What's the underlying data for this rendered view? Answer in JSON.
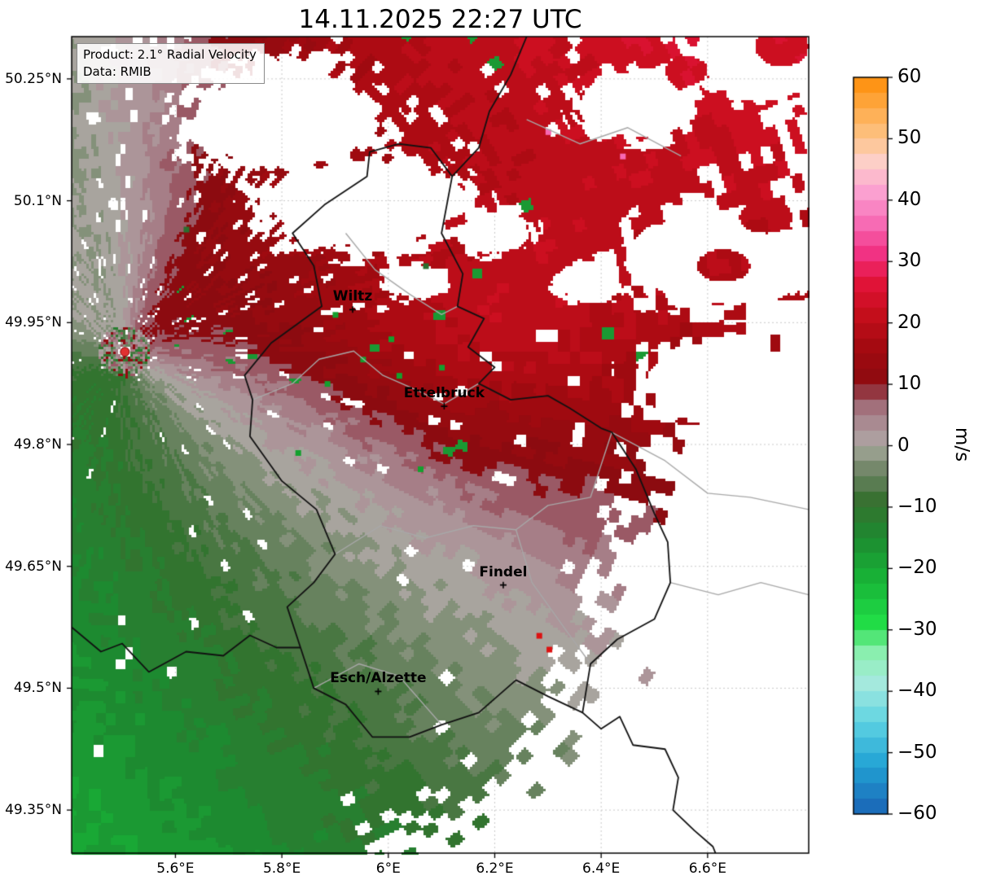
{
  "title": "14.11.2025 22:27 UTC",
  "info_box": {
    "product": "Product: 2.1° Radial Velocity",
    "source": "Data: RMIB"
  },
  "colorbar": {
    "unit_label": "m/s",
    "min": -60,
    "max": 60,
    "ticks": [
      {
        "value": 60,
        "label": "60"
      },
      {
        "value": 50,
        "label": "50"
      },
      {
        "value": 40,
        "label": "40"
      },
      {
        "value": 30,
        "label": "30"
      },
      {
        "value": 20,
        "label": "20"
      },
      {
        "value": 10,
        "label": "10"
      },
      {
        "value": 0,
        "label": "0"
      },
      {
        "value": -10,
        "label": "−10"
      },
      {
        "value": -20,
        "label": "−20"
      },
      {
        "value": -30,
        "label": "−30"
      },
      {
        "value": -40,
        "label": "−40"
      },
      {
        "value": -50,
        "label": "−50"
      },
      {
        "value": -60,
        "label": "−60"
      }
    ],
    "stops": [
      [
        -60,
        "#1a63b5"
      ],
      [
        -52,
        "#22a3d4"
      ],
      [
        -45,
        "#5ed3e2"
      ],
      [
        -39,
        "#a5e9df"
      ],
      [
        -34,
        "#8ff0b4"
      ],
      [
        -29,
        "#21dd47"
      ],
      [
        -22,
        "#17b437"
      ],
      [
        -15,
        "#1d8a30"
      ],
      [
        -9,
        "#36702f"
      ],
      [
        -6,
        "#5c7d54"
      ],
      [
        -3,
        "#7d8b73"
      ],
      [
        -1,
        "#99a18f"
      ],
      [
        0,
        "#a8a49e"
      ],
      [
        1,
        "#ada0a0"
      ],
      [
        3,
        "#ab9197"
      ],
      [
        6,
        "#a4747f"
      ],
      [
        8,
        "#97505c"
      ],
      [
        10,
        "#8c0b10"
      ],
      [
        16,
        "#a30a10"
      ],
      [
        22,
        "#c90e1d"
      ],
      [
        27,
        "#e4143c"
      ],
      [
        31,
        "#f12f80"
      ],
      [
        36,
        "#f768b3"
      ],
      [
        41,
        "#fb9dd0"
      ],
      [
        46,
        "#fdd0cb"
      ],
      [
        50,
        "#fdc489"
      ],
      [
        55,
        "#feaa47"
      ],
      [
        60,
        "#fe8c05"
      ]
    ]
  },
  "map": {
    "extent": {
      "lon_min": 5.405,
      "lon_max": 6.79,
      "lat_min": 49.297,
      "lat_max": 50.302
    },
    "grid_color": "#c9c9c9",
    "x_ticks": [
      {
        "lon": 5.6,
        "label": "5.6°E"
      },
      {
        "lon": 5.8,
        "label": "5.8°E"
      },
      {
        "lon": 6.0,
        "label": "6°E"
      },
      {
        "lon": 6.2,
        "label": "6.2°E"
      },
      {
        "lon": 6.4,
        "label": "6.4°E"
      },
      {
        "lon": 6.6,
        "label": "6.6°E"
      }
    ],
    "y_ticks": [
      {
        "lat": 50.25,
        "label": "50.25°N"
      },
      {
        "lat": 50.1,
        "label": "50.1°N"
      },
      {
        "lat": 49.95,
        "label": "49.95°N"
      },
      {
        "lat": 49.8,
        "label": "49.8°N"
      },
      {
        "lat": 49.65,
        "label": "49.65°N"
      },
      {
        "lat": 49.5,
        "label": "49.5°N"
      },
      {
        "lat": 49.35,
        "label": "49.35°N"
      }
    ],
    "cities": [
      {
        "name": "Wiltz",
        "lon": 5.933,
        "lat": 49.966
      },
      {
        "name": "Ettelbruck",
        "lon": 6.105,
        "lat": 49.847
      },
      {
        "name": "Findel",
        "lon": 6.216,
        "lat": 49.627
      },
      {
        "name": "Esch/Alzette",
        "lon": 5.981,
        "lat": 49.496
      }
    ],
    "radar_site": {
      "lon": 5.505,
      "lat": 49.914,
      "color": "#e03131"
    },
    "borders_black": [
      [
        [
          6.02,
          50.17
        ],
        [
          6.08,
          50.165
        ],
        [
          6.12,
          50.13
        ],
        [
          6.1,
          50.06
        ],
        [
          6.14,
          50.01
        ],
        [
          6.13,
          49.97
        ],
        [
          6.18,
          49.955
        ],
        [
          6.15,
          49.92
        ],
        [
          6.2,
          49.895
        ],
        [
          6.17,
          49.875
        ],
        [
          6.23,
          49.855
        ],
        [
          6.3,
          49.86
        ],
        [
          6.34,
          49.845
        ],
        [
          6.4,
          49.82
        ],
        [
          6.42,
          49.815
        ],
        [
          6.465,
          49.77
        ],
        [
          6.5,
          49.715
        ],
        [
          6.525,
          49.68
        ],
        [
          6.53,
          49.63
        ],
        [
          6.5,
          49.585
        ],
        [
          6.43,
          49.56
        ],
        [
          6.38,
          49.53
        ],
        [
          6.365,
          49.47
        ],
        [
          6.3,
          49.49
        ],
        [
          6.24,
          49.51
        ],
        [
          6.17,
          49.47
        ],
        [
          6.1,
          49.455
        ],
        [
          6.04,
          49.44
        ],
        [
          5.97,
          49.44
        ],
        [
          5.92,
          49.48
        ],
        [
          5.86,
          49.5
        ],
        [
          5.835,
          49.55
        ],
        [
          5.81,
          49.6
        ],
        [
          5.86,
          49.63
        ],
        [
          5.9,
          49.665
        ],
        [
          5.865,
          49.72
        ],
        [
          5.8,
          49.755
        ],
        [
          5.74,
          49.81
        ],
        [
          5.745,
          49.855
        ],
        [
          5.73,
          49.885
        ],
        [
          5.78,
          49.925
        ],
        [
          5.875,
          49.97
        ],
        [
          5.86,
          50.02
        ],
        [
          5.82,
          50.06
        ],
        [
          5.88,
          50.095
        ],
        [
          5.96,
          50.13
        ],
        [
          5.965,
          50.16
        ],
        [
          6.02,
          50.17
        ]
      ],
      [
        [
          6.12,
          50.13
        ],
        [
          6.17,
          50.165
        ],
        [
          6.19,
          50.21
        ],
        [
          6.23,
          50.255
        ],
        [
          6.26,
          50.302
        ],
        [
          6.28,
          50.33
        ]
      ],
      [
        [
          5.405,
          49.575
        ],
        [
          5.46,
          49.545
        ],
        [
          5.5,
          49.555
        ],
        [
          5.55,
          49.52
        ],
        [
          5.62,
          49.545
        ],
        [
          5.69,
          49.54
        ],
        [
          5.74,
          49.565
        ],
        [
          5.79,
          49.55
        ],
        [
          5.835,
          49.55
        ]
      ],
      [
        [
          6.365,
          49.47
        ],
        [
          6.4,
          49.45
        ],
        [
          6.435,
          49.465
        ],
        [
          6.46,
          49.43
        ],
        [
          6.52,
          49.425
        ],
        [
          6.545,
          49.39
        ],
        [
          6.535,
          49.35
        ],
        [
          6.575,
          49.325
        ],
        [
          6.61,
          49.305
        ],
        [
          6.625,
          49.28
        ]
      ]
    ],
    "borders_gray": [
      [
        [
          5.745,
          49.855
        ],
        [
          5.82,
          49.875
        ],
        [
          5.87,
          49.905
        ],
        [
          5.935,
          49.915
        ],
        [
          5.99,
          49.885
        ],
        [
          6.06,
          49.865
        ],
        [
          6.105,
          49.85
        ],
        [
          6.17,
          49.875
        ]
      ],
      [
        [
          5.92,
          50.06
        ],
        [
          5.975,
          50.015
        ],
        [
          6.04,
          49.985
        ],
        [
          6.1,
          49.96
        ],
        [
          6.13,
          49.97
        ]
      ],
      [
        [
          5.9,
          49.665
        ],
        [
          5.985,
          49.7
        ],
        [
          6.07,
          49.685
        ],
        [
          6.16,
          49.7
        ],
        [
          6.24,
          49.695
        ],
        [
          6.3,
          49.725
        ],
        [
          6.38,
          49.735
        ],
        [
          6.42,
          49.815
        ]
      ],
      [
        [
          6.24,
          49.695
        ],
        [
          6.27,
          49.63
        ],
        [
          6.33,
          49.575
        ],
        [
          6.38,
          49.53
        ]
      ],
      [
        [
          6.42,
          49.815
        ],
        [
          6.52,
          49.78
        ],
        [
          6.6,
          49.74
        ],
        [
          6.68,
          49.735
        ],
        [
          6.79,
          49.72
        ]
      ],
      [
        [
          6.53,
          49.63
        ],
        [
          6.62,
          49.615
        ],
        [
          6.7,
          49.63
        ],
        [
          6.79,
          49.615
        ]
      ],
      [
        [
          5.86,
          49.5
        ],
        [
          5.945,
          49.53
        ],
        [
          6.02,
          49.515
        ],
        [
          6.1,
          49.455
        ]
      ],
      [
        [
          6.26,
          50.2
        ],
        [
          6.36,
          50.17
        ],
        [
          6.45,
          50.19
        ],
        [
          6.55,
          50.155
        ]
      ]
    ]
  },
  "field": {
    "wind_to_deg": 35,
    "speed_base": 9,
    "speed_slope": 0.2,
    "speed_max": 27,
    "az_step": 1.5,
    "r_step": 1.5,
    "bump_neg": {
      "az": 352,
      "width": 35,
      "amp": 0.75
    },
    "bump_pos": {
      "az": 88,
      "az_width": 20,
      "r_center": 45,
      "r_width": 25,
      "amp": 0.45
    },
    "no_echo_blobs": [
      [
        5.95,
        50.095,
        0.22,
        0.065
      ],
      [
        5.8,
        50.2,
        0.2,
        0.075
      ],
      [
        6.62,
        50.03,
        0.2,
        0.07
      ],
      [
        6.62,
        49.88,
        0.18,
        0.05
      ],
      [
        6.46,
        50.22,
        0.12,
        0.05
      ],
      [
        6.7,
        50.28,
        0.15,
        0.06
      ],
      [
        6.05,
        50.0,
        0.06,
        0.025
      ],
      [
        6.38,
        50.0,
        0.07,
        0.025
      ],
      [
        6.2,
        50.06,
        0.08,
        0.03
      ]
    ],
    "echo_islands": [
      [
        6.46,
        50.13,
        0.05,
        0.02
      ],
      [
        6.63,
        50.02,
        0.05,
        0.02
      ],
      [
        6.71,
        50.08,
        0.05,
        0.02
      ],
      [
        6.56,
        50.26,
        0.04,
        0.018
      ],
      [
        6.74,
        50.29,
        0.05,
        0.025
      ],
      [
        6.23,
        50.3,
        0.06,
        0.02
      ]
    ],
    "sector_masks": [
      {
        "az0": 95,
        "az1": 120,
        "r": 72
      },
      {
        "az0": 120,
        "az1": 178,
        "r": 77
      },
      {
        "az0": 85,
        "az1": 95,
        "r": 82
      },
      {
        "az0": 60,
        "az1": 85,
        "r": 95
      }
    ],
    "speckles": [
      {
        "lon": 6.283,
        "lat": 49.565,
        "color": "#dd1111"
      },
      {
        "lon": 6.302,
        "lat": 49.548,
        "color": "#dd1111"
      },
      {
        "lon": 5.952,
        "lat": 49.905,
        "color": "#14a02e"
      },
      {
        "lon": 6.005,
        "lat": 49.93,
        "color": "#14a02e"
      },
      {
        "lon": 5.885,
        "lat": 49.875,
        "color": "#14a02e"
      },
      {
        "lon": 6.06,
        "lat": 49.77,
        "color": "#14a02e"
      },
      {
        "lon": 5.83,
        "lat": 49.79,
        "color": "#14a02e"
      },
      {
        "lon": 6.1,
        "lat": 49.895,
        "color": "#14a02e"
      },
      {
        "lon": 5.9,
        "lat": 49.96,
        "color": "#14a02e"
      },
      {
        "lon": 6.02,
        "lat": 49.885,
        "color": "#14a02e"
      },
      {
        "lon": 6.3,
        "lat": 50.185,
        "color": "#f768b3"
      },
      {
        "lon": 6.44,
        "lat": 50.155,
        "color": "#f768b3"
      },
      {
        "lon": 5.62,
        "lat": 50.065,
        "color": "#2a6e2e"
      },
      {
        "lon": 6.07,
        "lat": 50.02,
        "color": "#2a6e2e"
      }
    ]
  },
  "chart_data": {
    "type": "heatmap",
    "title": "14.11.2025 22:27 UTC",
    "product": "2.1° Radial Velocity",
    "source": "RMIB",
    "units": "m/s",
    "colorbar_range": [
      -60,
      60
    ],
    "colorbar_ticks": [
      60,
      50,
      40,
      30,
      20,
      10,
      0,
      -10,
      -20,
      -30,
      -40,
      -50,
      -60
    ],
    "extent_lon": [
      5.405,
      6.79
    ],
    "extent_lat": [
      49.297,
      50.302
    ],
    "radar_site_lonlat": [
      5.505,
      49.914
    ],
    "cities_labeled": [
      "Wiltz",
      "Ettelbruck",
      "Findel",
      "Esch/Alzette"
    ],
    "description": "Doppler radar radial velocity field over Luxembourg: negative velocities (green, toward radar) south/southwest of the radar site, positive velocities (red/dark red, away from radar) north/northeast, with a near-zero mauve-gray transition band running WNW–ESE through the middle; white areas are no-echo regions."
  }
}
